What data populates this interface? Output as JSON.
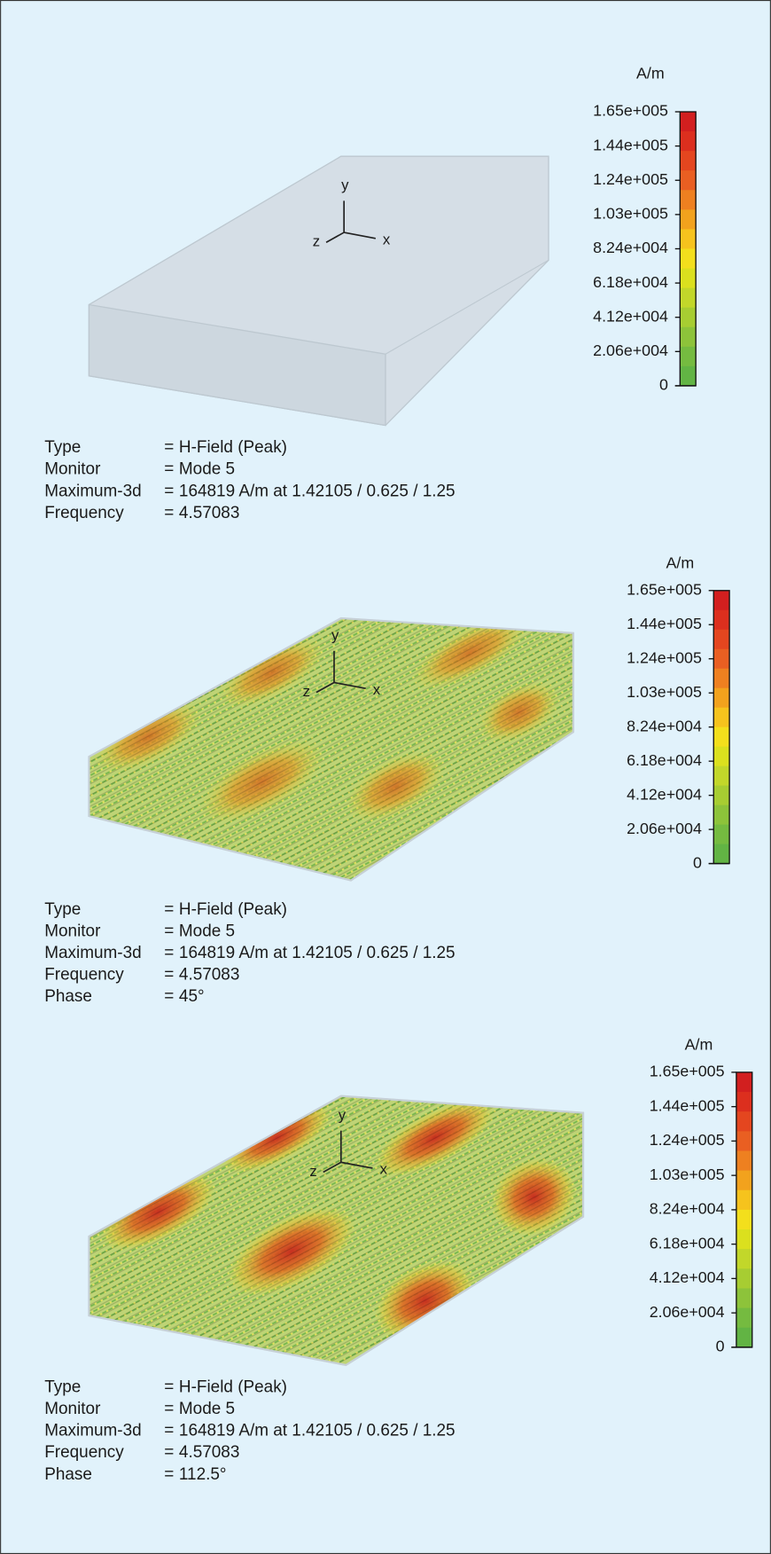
{
  "panels": [
    {
      "scale": {
        "unit": "A/m",
        "labels": [
          "1.65e+005",
          "1.44e+005",
          "1.24e+005",
          "1.03e+005",
          "8.24e+004",
          "6.18e+004",
          "4.12e+004",
          "2.06e+004",
          "0"
        ]
      },
      "axes": {
        "x": "x",
        "y": "y",
        "z": "z"
      },
      "info": [
        {
          "label": "Type",
          "sep": "=",
          "value": "H-Field (Peak)"
        },
        {
          "label": "Monitor",
          "sep": "=",
          "value": "Mode 5"
        },
        {
          "label": "Maximum-3d",
          "sep": "=",
          "value": "164819 A/m at 1.42105 / 0.625 / 1.25"
        },
        {
          "label": "Frequency",
          "sep": "=",
          "value": "4.57083"
        }
      ]
    },
    {
      "scale": {
        "unit": "A/m",
        "labels": [
          "1.65e+005",
          "1.44e+005",
          "1.24e+005",
          "1.03e+005",
          "8.24e+004",
          "6.18e+004",
          "4.12e+004",
          "2.06e+004",
          "0"
        ]
      },
      "axes": {
        "x": "x",
        "y": "y",
        "z": "z"
      },
      "info": [
        {
          "label": "Type",
          "sep": "=",
          "value": "H-Field (Peak)"
        },
        {
          "label": "Monitor",
          "sep": "=",
          "value": "Mode 5"
        },
        {
          "label": "Maximum-3d",
          "sep": "=",
          "value": "164819 A/m at 1.42105 / 0.625 / 1.25"
        },
        {
          "label": "Frequency",
          "sep": "=",
          "value": "4.57083"
        },
        {
          "label": "Phase",
          "sep": "=",
          "value": "45°"
        }
      ]
    },
    {
      "scale": {
        "unit": "A/m",
        "labels": [
          "1.65e+005",
          "1.44e+005",
          "1.24e+005",
          "1.03e+005",
          "8.24e+004",
          "6.18e+004",
          "4.12e+004",
          "2.06e+004",
          "0"
        ]
      },
      "axes": {
        "x": "x",
        "y": "y",
        "z": "z"
      },
      "info": [
        {
          "label": "Type",
          "sep": "=",
          "value": "H-Field (Peak)"
        },
        {
          "label": "Monitor",
          "sep": "=",
          "value": "Mode 5"
        },
        {
          "label": "Maximum-3d",
          "sep": "=",
          "value": "164819 A/m at 1.42105 / 0.625 / 1.25"
        },
        {
          "label": "Frequency",
          "sep": "=",
          "value": "4.57083"
        },
        {
          "label": "Phase",
          "sep": "=",
          "value": "112.5°"
        }
      ]
    }
  ]
}
